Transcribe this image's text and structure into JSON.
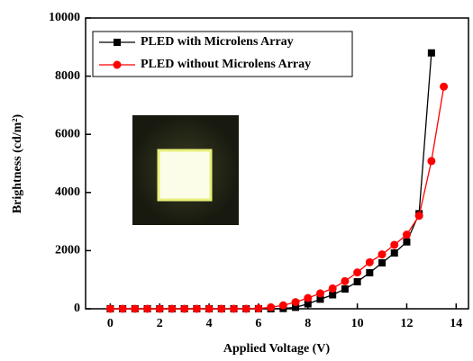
{
  "chart_data": {
    "type": "line",
    "x_label": "Applied Voltage (V)",
    "y_label": "Brightness (cd/m²)",
    "xlim": [
      -1,
      14.5
    ],
    "ylim": [
      0,
      10000
    ],
    "xticks": [
      0,
      2,
      4,
      6,
      8,
      10,
      12,
      14
    ],
    "yticks": [
      0,
      2000,
      4000,
      6000,
      8000,
      10000
    ],
    "legend": "upper left",
    "series": [
      {
        "name": "PLED with Microlens Array",
        "color": "#000000",
        "marker": "square",
        "x": [
          0,
          0.5,
          1,
          1.5,
          2,
          2.5,
          3,
          3.5,
          4,
          4.5,
          5,
          5.5,
          6,
          6.5,
          7,
          7.5,
          8,
          8.5,
          9,
          9.5,
          10,
          10.5,
          11,
          11.5,
          12,
          12.5,
          13
        ],
        "values": [
          0,
          0,
          0,
          0,
          0,
          0,
          0,
          0,
          0,
          0,
          0,
          0,
          0,
          0,
          10,
          50,
          170,
          330,
          480,
          680,
          930,
          1240,
          1580,
          1920,
          2300,
          3270,
          8800
        ]
      },
      {
        "name": "PLED without Microlens Array",
        "color": "#ff0000",
        "marker": "circle",
        "x": [
          0,
          0.5,
          1,
          1.5,
          2,
          2.5,
          3,
          3.5,
          4,
          4.5,
          5,
          5.5,
          6,
          6.5,
          7,
          7.5,
          8,
          8.5,
          9,
          9.5,
          10,
          10.5,
          11,
          11.5,
          12,
          12.5,
          13,
          13.5
        ],
        "values": [
          0,
          0,
          0,
          0,
          0,
          0,
          0,
          0,
          0,
          0,
          0,
          0,
          10,
          50,
          120,
          230,
          370,
          530,
          700,
          950,
          1250,
          1600,
          1870,
          2200,
          2550,
          3200,
          5080,
          7640
        ]
      }
    ]
  }
}
